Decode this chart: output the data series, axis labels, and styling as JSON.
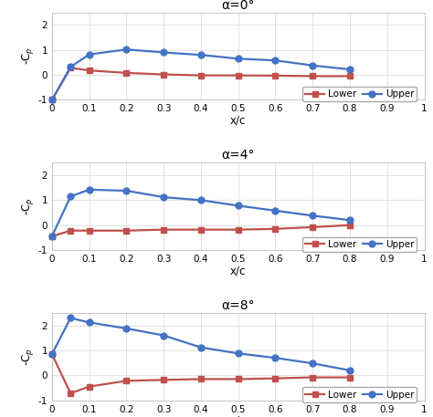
{
  "panels": [
    {
      "title": "α=0°",
      "upper_x": [
        0,
        0.05,
        0.1,
        0.2,
        0.3,
        0.4,
        0.5,
        0.6,
        0.7,
        0.8
      ],
      "upper_y": [
        -1.0,
        0.32,
        0.82,
        1.02,
        0.9,
        0.8,
        0.65,
        0.58,
        0.38,
        0.22
      ],
      "lower_x": [
        0,
        0.05,
        0.1,
        0.2,
        0.3,
        0.4,
        0.5,
        0.6,
        0.7,
        0.8
      ],
      "lower_y": [
        -1.0,
        0.28,
        0.18,
        0.08,
        0.02,
        -0.02,
        -0.02,
        -0.03,
        -0.05,
        -0.05
      ],
      "ylim": [
        -1.0,
        2.5
      ],
      "yticks": [
        -1,
        0,
        1,
        2
      ]
    },
    {
      "title": "α=4°",
      "upper_x": [
        0,
        0.05,
        0.1,
        0.2,
        0.3,
        0.4,
        0.5,
        0.6,
        0.7,
        0.8
      ],
      "upper_y": [
        -0.45,
        1.15,
        1.42,
        1.38,
        1.12,
        1.0,
        0.78,
        0.58,
        0.38,
        0.2
      ],
      "lower_x": [
        0,
        0.05,
        0.1,
        0.2,
        0.3,
        0.4,
        0.5,
        0.6,
        0.7,
        0.8
      ],
      "lower_y": [
        -0.45,
        -0.22,
        -0.22,
        -0.22,
        -0.18,
        -0.18,
        -0.18,
        -0.15,
        -0.08,
        0.0
      ],
      "ylim": [
        -1.0,
        2.5
      ],
      "yticks": [
        -1,
        0,
        1,
        2
      ]
    },
    {
      "title": "α=8°",
      "upper_x": [
        0,
        0.05,
        0.1,
        0.2,
        0.3,
        0.4,
        0.5,
        0.6,
        0.7,
        0.8
      ],
      "upper_y": [
        0.85,
        2.3,
        2.12,
        1.88,
        1.6,
        1.12,
        0.88,
        0.7,
        0.48,
        0.2
      ],
      "lower_x": [
        0,
        0.05,
        0.1,
        0.2,
        0.3,
        0.4,
        0.5,
        0.6,
        0.7,
        0.8
      ],
      "lower_y": [
        0.85,
        -0.72,
        -0.45,
        -0.22,
        -0.18,
        -0.15,
        -0.15,
        -0.12,
        -0.08,
        -0.08
      ],
      "ylim": [
        -1.0,
        2.5
      ],
      "yticks": [
        -1,
        0,
        1,
        2
      ]
    }
  ],
  "upper_color": "#4472C4",
  "lower_color": "#C0504D",
  "upper_label": "Upper",
  "lower_label": "Lower",
  "xlabel": "x/c",
  "ylabel": "-C$_p$",
  "xlim": [
    0,
    1.0
  ],
  "xticks": [
    0,
    0.1,
    0.2,
    0.3,
    0.4,
    0.5,
    0.6,
    0.7,
    0.8,
    0.9,
    1
  ],
  "xticklabels": [
    "0",
    "0.1",
    "0.2",
    "0.3",
    "0.4",
    "0.5",
    "0.6",
    "0.7",
    "0.8",
    "0.9",
    "1"
  ],
  "background_color": "#ffffff",
  "grid_color": "#dddddd",
  "title_fontsize": 10,
  "label_fontsize": 8.5,
  "tick_fontsize": 7.5,
  "legend_fontsize": 7.5,
  "marker_size": 5,
  "line_width": 1.6
}
